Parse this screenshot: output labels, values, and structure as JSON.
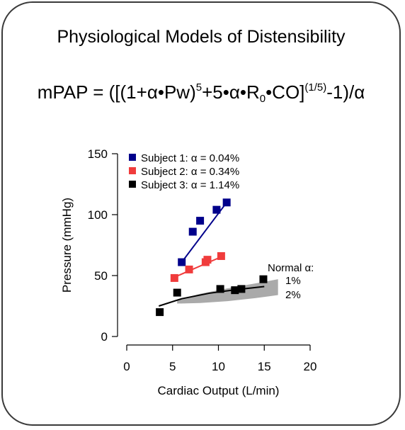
{
  "title": "Physiological Models of Distensibility",
  "equation": {
    "part1": "mPAP = ([(1+α•Pw)",
    "exp1": "5",
    "part2": "+5•α•R",
    "sub1": "0",
    "part3": "•CO]",
    "exp2": "(1/5)",
    "part4": "-1)/α"
  },
  "chart_data": {
    "type": "scatter",
    "xlabel": "Cardiac Output (L/min)",
    "ylabel": "Pressure (mmHg)",
    "xlim": [
      0,
      20
    ],
    "ylim": [
      0,
      150
    ],
    "xticks": [
      0,
      5,
      10,
      15,
      20
    ],
    "yticks": [
      0,
      50,
      100,
      150
    ],
    "grid": false,
    "legend_position": "top-left",
    "series": [
      {
        "name": "Subject 1: α = 0.04%",
        "color": "#00008b",
        "points": [
          [
            6.0,
            61
          ],
          [
            7.2,
            86
          ],
          [
            8.0,
            95
          ],
          [
            9.8,
            104
          ],
          [
            10.9,
            110
          ]
        ],
        "fit": [
          [
            5.8,
            59
          ],
          [
            11.0,
            111
          ]
        ]
      },
      {
        "name": "Subject 2: α = 0.34%",
        "color": "#f03c3c",
        "points": [
          [
            5.2,
            48
          ],
          [
            6.8,
            55
          ],
          [
            8.6,
            61
          ],
          [
            8.8,
            63
          ],
          [
            10.3,
            66
          ]
        ],
        "fit": [
          [
            5.0,
            48
          ],
          [
            10.5,
            66
          ]
        ]
      },
      {
        "name": "Subject 3: α = 1.14%",
        "color": "#000000",
        "points": [
          [
            3.6,
            20
          ],
          [
            5.5,
            36
          ],
          [
            10.2,
            39
          ],
          [
            11.8,
            38
          ],
          [
            12.5,
            39
          ],
          [
            14.9,
            47
          ]
        ],
        "fit": [
          [
            3.5,
            25
          ],
          [
            6,
            31
          ],
          [
            9,
            35.5
          ],
          [
            12,
            38.5
          ],
          [
            15,
            41
          ]
        ]
      }
    ],
    "normal_band": {
      "label": "Normal α:",
      "upper_label": "1%",
      "lower_label": "2%",
      "color": "#aaaaaa",
      "upper": [
        [
          5.5,
          30
        ],
        [
          8,
          35
        ],
        [
          11,
          39.5
        ],
        [
          14,
          43.5
        ],
        [
          16.5,
          47
        ]
      ],
      "lower": [
        [
          16.5,
          34
        ],
        [
          14,
          31.5
        ],
        [
          11,
          29
        ],
        [
          8,
          27.5
        ],
        [
          5.5,
          27
        ]
      ]
    }
  }
}
